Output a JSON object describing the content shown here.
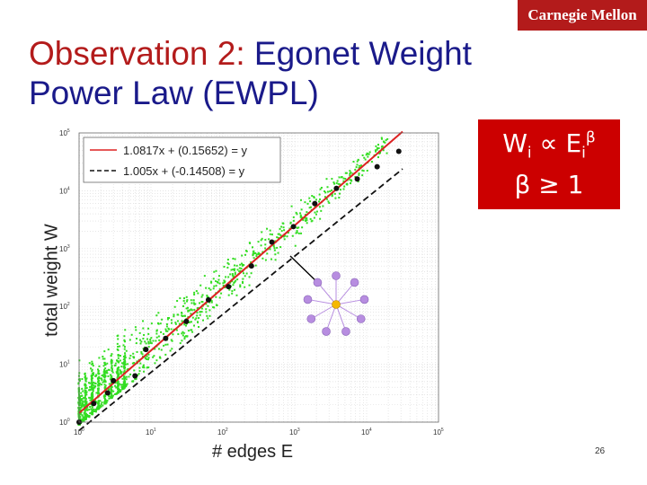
{
  "logo_text": "Carnegie Mellon",
  "title": {
    "highlight": "Observation 2:",
    "rest": " Egonet Weight",
    "line2": "Power Law (EWPL)"
  },
  "formula": {
    "w": "W",
    "w_sub": "i",
    "prop": " ∝ E",
    "e_sub": "i",
    "e_sup": "β",
    "condition": "β ≥ 1"
  },
  "page_number": "26",
  "chart_data": {
    "type": "scatter",
    "xlabel": "# edges E",
    "ylabel": "total weight W",
    "log_x": true,
    "log_y": true,
    "xlim": [
      1,
      100000
    ],
    "ylim": [
      1,
      100000
    ],
    "grid": true,
    "x_ticks": [
      {
        "base": "10",
        "exp": "0"
      },
      {
        "base": "10",
        "exp": "1"
      },
      {
        "base": "10",
        "exp": "2"
      },
      {
        "base": "10",
        "exp": "3"
      },
      {
        "base": "10",
        "exp": "4"
      },
      {
        "base": "10",
        "exp": "5"
      }
    ],
    "y_ticks": [
      {
        "base": "10",
        "exp": "0"
      },
      {
        "base": "10",
        "exp": "1"
      },
      {
        "base": "10",
        "exp": "2"
      },
      {
        "base": "10",
        "exp": "3"
      },
      {
        "base": "10",
        "exp": "4"
      },
      {
        "base": "10",
        "exp": "5"
      }
    ],
    "legend_position": "top-left",
    "legend": [
      {
        "label": "1.0817x + (0.15652) = y",
        "style": "solid",
        "color": "#dd2222"
      },
      {
        "label": "1.005x + (-0.14508) = y",
        "style": "dashed",
        "color": "#111111"
      }
    ],
    "series": [
      {
        "kind": "median_points",
        "color": "#111111",
        "points": [
          {
            "x": 1,
            "y": 1
          },
          {
            "x": 1.6,
            "y": 2.1
          },
          {
            "x": 2.5,
            "y": 3.2
          },
          {
            "x": 3,
            "y": 5.2
          },
          {
            "x": 6,
            "y": 6.3
          },
          {
            "x": 8.5,
            "y": 18
          },
          {
            "x": 16,
            "y": 28
          },
          {
            "x": 31,
            "y": 55
          },
          {
            "x": 63,
            "y": 130
          },
          {
            "x": 120,
            "y": 220
          },
          {
            "x": 250,
            "y": 500
          },
          {
            "x": 480,
            "y": 1300
          },
          {
            "x": 960,
            "y": 2400
          },
          {
            "x": 1900,
            "y": 6000
          },
          {
            "x": 3800,
            "y": 11000
          },
          {
            "x": 7400,
            "y": 16000
          },
          {
            "x": 14000,
            "y": 26000
          },
          {
            "x": 28000,
            "y": 48000
          }
        ]
      }
    ],
    "fit_lines": [
      {
        "slope": 1.0817,
        "intercept": 0.15652,
        "color": "#dd2222",
        "style": "solid"
      },
      {
        "slope": 1.005,
        "intercept": -0.14508,
        "color": "#111111",
        "style": "dashed"
      }
    ],
    "scatter_color": "#33dd22"
  },
  "inset_graph": {
    "center_color": "#f5b800",
    "leaf_color": "#b78de0",
    "edge_color": "#b78de0"
  }
}
